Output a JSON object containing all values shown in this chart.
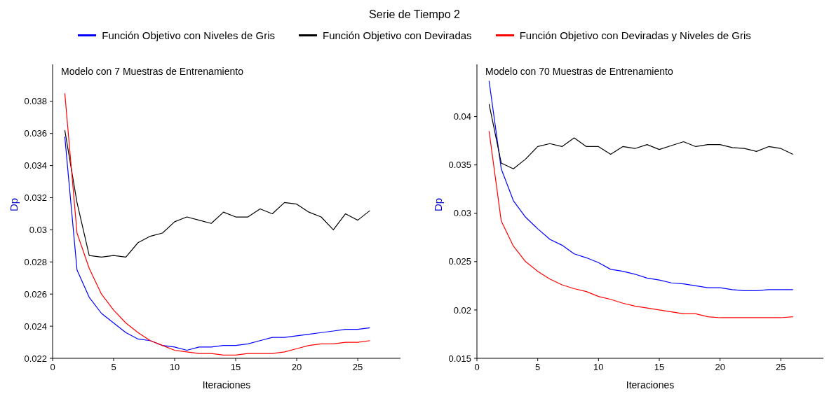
{
  "chart_data": [
    {
      "type": "line",
      "title": "Serie de Tiempo 2",
      "subtitle": "Modelo con 7 Muestras de Entrenamiento",
      "xlabel": "Iteraciones",
      "ylabel": "Dp",
      "legend": "top",
      "x": [
        1,
        2,
        3,
        4,
        5,
        6,
        7,
        8,
        9,
        10,
        11,
        12,
        13,
        14,
        15,
        16,
        17,
        18,
        19,
        20,
        21,
        22,
        23,
        24,
        25,
        26
      ],
      "xlim": [
        0,
        28.5
      ],
      "xticks": [
        0,
        5,
        10,
        15,
        20,
        25
      ],
      "ylim": [
        0.022,
        0.0403
      ],
      "yticks": [
        0.022,
        0.024,
        0.026,
        0.028,
        0.03,
        0.032,
        0.034,
        0.036,
        0.038
      ],
      "series": [
        {
          "name": "Función Objetivo con Niveles de Gris",
          "color": "#0000ff",
          "values": [
            0.0358,
            0.0275,
            0.0258,
            0.0248,
            0.0242,
            0.0236,
            0.0232,
            0.0231,
            0.0228,
            0.0227,
            0.0225,
            0.0227,
            0.0227,
            0.0228,
            0.0228,
            0.0229,
            0.0231,
            0.0233,
            0.0233,
            0.0234,
            0.0235,
            0.0236,
            0.0237,
            0.0238,
            0.0238,
            0.0239
          ]
        },
        {
          "name": "Función Objetivo con Deviradas",
          "color": "#000000",
          "values": [
            0.0362,
            0.0317,
            0.0284,
            0.0283,
            0.0284,
            0.0283,
            0.0292,
            0.0296,
            0.0298,
            0.0305,
            0.0308,
            0.0306,
            0.0304,
            0.0311,
            0.0308,
            0.0308,
            0.0313,
            0.031,
            0.0317,
            0.0316,
            0.0311,
            0.0308,
            0.03,
            0.031,
            0.0306,
            0.0312
          ]
        },
        {
          "name": "Función Objetivo con Deviradas y Niveles de Gris",
          "color": "#ff0000",
          "values": [
            0.0385,
            0.0298,
            0.0276,
            0.026,
            0.025,
            0.0242,
            0.0236,
            0.0231,
            0.0228,
            0.0225,
            0.0224,
            0.0223,
            0.0223,
            0.0222,
            0.0222,
            0.0223,
            0.0223,
            0.0223,
            0.0224,
            0.0226,
            0.0228,
            0.0229,
            0.0229,
            0.023,
            0.023,
            0.0231
          ]
        }
      ]
    },
    {
      "type": "line",
      "subtitle": "Modelo con 70 Muestras de Entrenamiento",
      "xlabel": "Iteraciones",
      "ylabel": "Dp",
      "x": [
        1,
        2,
        3,
        4,
        5,
        6,
        7,
        8,
        9,
        10,
        11,
        12,
        13,
        14,
        15,
        16,
        17,
        18,
        19,
        20,
        21,
        22,
        23,
        24,
        25,
        26
      ],
      "xlim": [
        0,
        28.5
      ],
      "xticks": [
        0,
        5,
        10,
        15,
        20,
        25
      ],
      "ylim": [
        0.015,
        0.0454
      ],
      "yticks": [
        0.015,
        0.02,
        0.025,
        0.03,
        0.035,
        0.04
      ],
      "series": [
        {
          "color": "#0000ff",
          "values": [
            0.0437,
            0.0346,
            0.0313,
            0.0296,
            0.0284,
            0.0273,
            0.0267,
            0.0258,
            0.0254,
            0.0249,
            0.0242,
            0.024,
            0.0237,
            0.0233,
            0.0231,
            0.0228,
            0.0227,
            0.0225,
            0.0223,
            0.0223,
            0.0221,
            0.022,
            0.022,
            0.0221,
            0.0221,
            0.0221
          ]
        },
        {
          "color": "#000000",
          "values": [
            0.0413,
            0.0352,
            0.0346,
            0.0356,
            0.0369,
            0.0372,
            0.0369,
            0.0378,
            0.0369,
            0.0369,
            0.0361,
            0.0369,
            0.0367,
            0.0371,
            0.0366,
            0.037,
            0.0374,
            0.0369,
            0.0371,
            0.0371,
            0.0368,
            0.0367,
            0.0364,
            0.0369,
            0.0367,
            0.0361
          ]
        },
        {
          "color": "#ff0000",
          "values": [
            0.0385,
            0.0292,
            0.0266,
            0.025,
            0.024,
            0.0232,
            0.0226,
            0.0222,
            0.0219,
            0.0214,
            0.0211,
            0.0207,
            0.0204,
            0.0202,
            0.02,
            0.0198,
            0.0196,
            0.0196,
            0.0193,
            0.0192,
            0.0192,
            0.0192,
            0.0192,
            0.0192,
            0.0192,
            0.0193
          ]
        }
      ]
    }
  ]
}
